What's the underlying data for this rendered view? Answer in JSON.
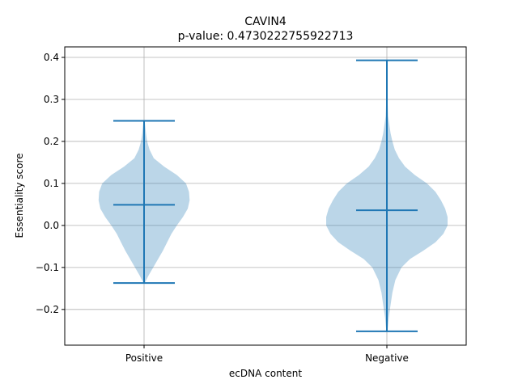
{
  "chart_data": {
    "type": "violin",
    "title": "CAVIN4",
    "subtitle": "p-value: 0.4730222755922713",
    "xlabel": "ecDNA content",
    "ylabel": "Essentiality score",
    "categories": [
      "Positive",
      "Negative"
    ],
    "ylim": [
      -0.285,
      0.425
    ],
    "yticks": [
      -0.2,
      -0.1,
      0.0,
      0.1,
      0.2,
      0.3,
      0.4
    ],
    "ytick_labels": [
      "−0.2",
      "−0.1",
      "0.0",
      "0.1",
      "0.2",
      "0.3",
      "0.4"
    ],
    "grid": true,
    "colors": {
      "stat_lines": "#1f77b4",
      "body_fill": "#1f77b4",
      "grid": "#b0b0b0"
    },
    "violins": [
      {
        "category": "Positive",
        "min": -0.137,
        "max": 0.249,
        "center": 0.049,
        "density": [
          [
            -0.137,
            0.01
          ],
          [
            -0.12,
            0.07
          ],
          [
            -0.1,
            0.15
          ],
          [
            -0.08,
            0.23
          ],
          [
            -0.06,
            0.31
          ],
          [
            -0.04,
            0.38
          ],
          [
            -0.02,
            0.45
          ],
          [
            0.0,
            0.54
          ],
          [
            0.02,
            0.64
          ],
          [
            0.04,
            0.72
          ],
          [
            0.06,
            0.75
          ],
          [
            0.08,
            0.74
          ],
          [
            0.1,
            0.69
          ],
          [
            0.12,
            0.54
          ],
          [
            0.14,
            0.33
          ],
          [
            0.16,
            0.16
          ],
          [
            0.18,
            0.09
          ],
          [
            0.2,
            0.05
          ],
          [
            0.22,
            0.03
          ],
          [
            0.249,
            0.01
          ]
        ]
      },
      {
        "category": "Negative",
        "min": -0.252,
        "max": 0.393,
        "center": 0.036,
        "density": [
          [
            -0.252,
            0.01
          ],
          [
            -0.22,
            0.03
          ],
          [
            -0.19,
            0.06
          ],
          [
            -0.16,
            0.09
          ],
          [
            -0.13,
            0.14
          ],
          [
            -0.1,
            0.24
          ],
          [
            -0.08,
            0.38
          ],
          [
            -0.06,
            0.6
          ],
          [
            -0.04,
            0.8
          ],
          [
            -0.02,
            0.93
          ],
          [
            0.0,
            1.0
          ],
          [
            0.02,
            1.0
          ],
          [
            0.04,
            0.96
          ],
          [
            0.06,
            0.89
          ],
          [
            0.08,
            0.8
          ],
          [
            0.1,
            0.66
          ],
          [
            0.12,
            0.46
          ],
          [
            0.14,
            0.3
          ],
          [
            0.16,
            0.2
          ],
          [
            0.18,
            0.13
          ],
          [
            0.2,
            0.09
          ],
          [
            0.22,
            0.06
          ],
          [
            0.24,
            0.04
          ],
          [
            0.26,
            0.02
          ],
          [
            0.3,
            0.01
          ],
          [
            0.35,
            0.01
          ],
          [
            0.393,
            0.01
          ]
        ]
      }
    ]
  }
}
